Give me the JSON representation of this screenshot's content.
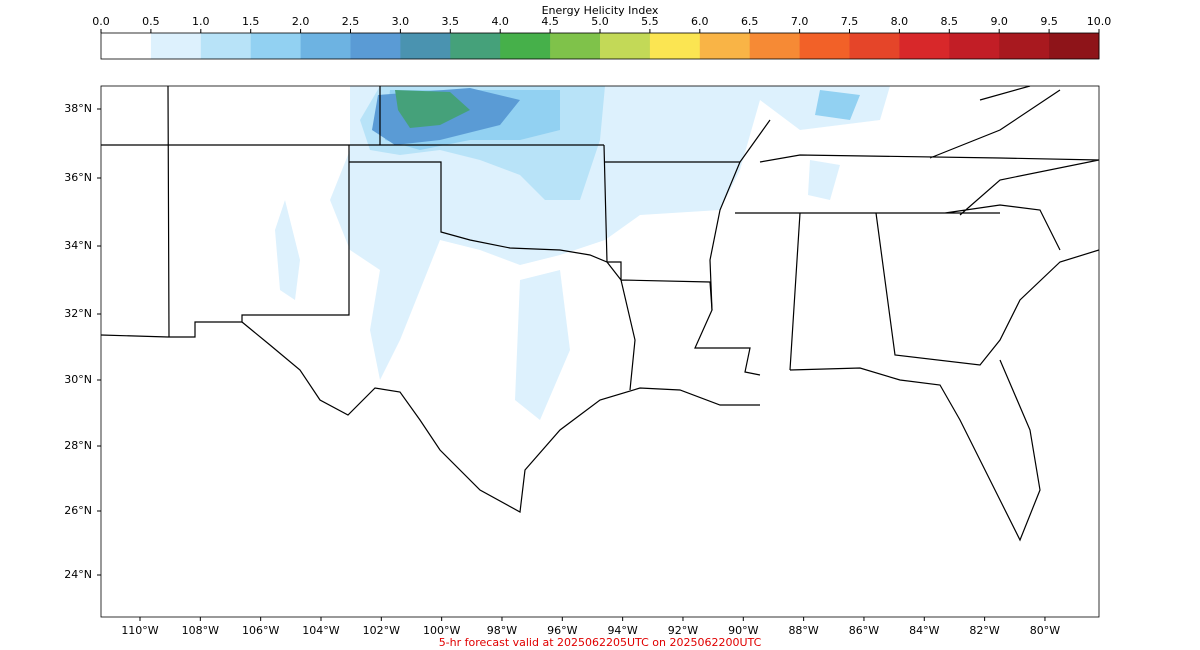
{
  "colorbar": {
    "title": "Energy Helicity Index",
    "ticks": [
      "0.0",
      "0.5",
      "1.0",
      "1.5",
      "2.0",
      "2.5",
      "3.0",
      "3.5",
      "4.0",
      "4.5",
      "5.0",
      "5.5",
      "6.0",
      "6.5",
      "7.0",
      "7.5",
      "8.0",
      "8.5",
      "9.0",
      "9.5",
      "10.0"
    ],
    "colors": [
      "#ffffff",
      "#ddf1fd",
      "#b8e3f8",
      "#92d1f2",
      "#6db3e2",
      "#5a9bd5",
      "#4a93b0",
      "#45a17a",
      "#46b04a",
      "#7fc24a",
      "#c3d957",
      "#fbe552",
      "#f9b446",
      "#f68a35",
      "#f26128",
      "#e54529",
      "#d8282a",
      "#c21e26",
      "#a8191f",
      "#8e1419"
    ]
  },
  "map": {
    "lat_labels": [
      "38°N",
      "36°N",
      "34°N",
      "32°N",
      "30°N",
      "28°N",
      "26°N",
      "24°N"
    ],
    "lon_labels": [
      "110°W",
      "108°W",
      "106°W",
      "104°W",
      "102°W",
      "100°W",
      "98°W",
      "96°W",
      "94°W",
      "92°W",
      "90°W",
      "88°W",
      "86°W",
      "84°W",
      "82°W",
      "80°W"
    ]
  },
  "footer": "5-hr forecast valid at 2025062205UTC on 2025062200UTC"
}
